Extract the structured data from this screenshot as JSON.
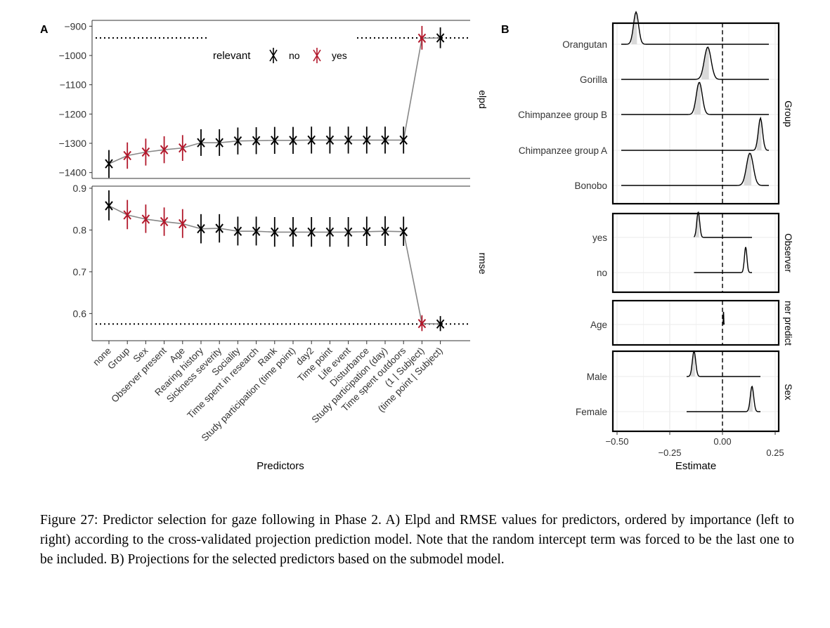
{
  "caption": "Figure 27: Predictor selection for gaze following in Phase 2. A) Elpd and RMSE values for predictors, ordered by importance (left to right) according to the cross-validated projection prediction model. Note that the random intercept term was forced to be the last one to be included. B) Projections for the selected predictors based on the submodel model.",
  "chart_data": [
    {
      "panel": "A",
      "type": "line",
      "xlabel": "Predictors",
      "categories": [
        "none",
        "Group",
        "Sex",
        "Observer present",
        "Age",
        "Rearing history",
        "Sickness severity",
        "Sociality",
        "Time spent in research",
        "Rank",
        "Study participation (time point)",
        "day2",
        "Time point",
        "Life event",
        "Disturbance",
        "Study participation (day)",
        "Time spent outdoors",
        "(1 | Subject)",
        "(time point | Subject)"
      ],
      "relevant": [
        "no",
        "yes",
        "yes",
        "yes",
        "yes",
        "no",
        "no",
        "no",
        "no",
        "no",
        "no",
        "no",
        "no",
        "no",
        "no",
        "no",
        "no",
        "yes",
        "no"
      ],
      "legend": {
        "title": "relevant",
        "entries": [
          "no",
          "yes"
        ],
        "colors": {
          "no": "#000000",
          "yes": "#b2182b"
        },
        "placement": "top"
      },
      "facets": [
        {
          "label": "elpd",
          "ylim": [
            -1420,
            -880
          ],
          "yticks": [
            -900,
            -1000,
            -1100,
            -1200,
            -1300,
            -1400
          ],
          "values": [
            -1370,
            -1342,
            -1330,
            -1322,
            -1316,
            -1298,
            -1298,
            -1292,
            -1291,
            -1290,
            -1290,
            -1289,
            -1289,
            -1289,
            -1289,
            -1289,
            -1289,
            -941,
            -940
          ],
          "lower": [
            -1418,
            -1387,
            -1376,
            -1368,
            -1360,
            -1343,
            -1343,
            -1338,
            -1337,
            -1336,
            -1336,
            -1335,
            -1335,
            -1335,
            -1335,
            -1335,
            -1335,
            -980,
            -975
          ],
          "upper": [
            -1323,
            -1297,
            -1284,
            -1276,
            -1272,
            -1252,
            -1252,
            -1246,
            -1245,
            -1244,
            -1244,
            -1243,
            -1243,
            -1243,
            -1243,
            -1243,
            -1243,
            -899,
            -904
          ],
          "reference": -940
        },
        {
          "label": "rmse",
          "ylim": [
            0.535,
            0.905
          ],
          "yticks": [
            0.9,
            0.8,
            0.7,
            0.6
          ],
          "values": [
            0.858,
            0.836,
            0.826,
            0.82,
            0.815,
            0.803,
            0.804,
            0.797,
            0.797,
            0.795,
            0.795,
            0.795,
            0.795,
            0.795,
            0.796,
            0.797,
            0.796,
            0.576,
            0.575
          ],
          "lower": [
            0.823,
            0.802,
            0.793,
            0.786,
            0.781,
            0.768,
            0.77,
            0.763,
            0.763,
            0.76,
            0.76,
            0.76,
            0.76,
            0.76,
            0.762,
            0.762,
            0.762,
            0.558,
            0.558
          ],
          "upper": [
            0.895,
            0.872,
            0.861,
            0.854,
            0.85,
            0.838,
            0.838,
            0.832,
            0.832,
            0.831,
            0.831,
            0.831,
            0.831,
            0.831,
            0.832,
            0.833,
            0.832,
            0.596,
            0.594
          ],
          "reference": 0.575
        }
      ]
    },
    {
      "panel": "B",
      "type": "area",
      "xlabel": "Estimate",
      "xlim": [
        -0.5,
        0.25
      ],
      "xticks": [
        -0.5,
        -0.25,
        0,
        0.25
      ],
      "xtick_labels": [
        "−0.50",
        "−0.25",
        "0.00",
        "0.25"
      ],
      "reference_x": 0,
      "facets": [
        {
          "label": "Group",
          "rows": [
            {
              "name": "Orangutan",
              "peak": -0.41,
              "sd": 0.012,
              "range": [
                -0.48,
                0.22
              ],
              "fill": true
            },
            {
              "name": "Gorilla",
              "peak": -0.07,
              "sd": 0.016,
              "range": [
                -0.48,
                0.22
              ],
              "fill": true
            },
            {
              "name": "Chimpanzee group B",
              "peak": -0.11,
              "sd": 0.014,
              "range": [
                -0.48,
                0.22
              ],
              "fill": true
            },
            {
              "name": "Chimpanzee group A",
              "peak": 0.18,
              "sd": 0.01,
              "range": [
                -0.48,
                0.22
              ],
              "fill": true
            },
            {
              "name": "Bonobo",
              "peak": 0.13,
              "sd": 0.016,
              "range": [
                -0.48,
                0.22
              ],
              "fill": true
            }
          ]
        },
        {
          "label": "Observer",
          "rows": [
            {
              "name": "yes",
              "peak": -0.115,
              "sd": 0.007,
              "range": [
                -0.135,
                0.14
              ],
              "fill": true
            },
            {
              "name": "no",
              "peak": 0.11,
              "sd": 0.006,
              "range": [
                -0.135,
                0.14
              ],
              "fill": false
            }
          ]
        },
        {
          "label": "Other predictors",
          "label_shown": "ner predict",
          "rows": [
            {
              "name": "Age",
              "peak": 0.005,
              "sd": 0.001,
              "range": [
                0.002,
                0.008
              ],
              "fill": false
            }
          ]
        },
        {
          "label": "Sex",
          "rows": [
            {
              "name": "Male",
              "peak": -0.135,
              "sd": 0.008,
              "range": [
                -0.17,
                0.18
              ],
              "fill": true
            },
            {
              "name": "Female",
              "peak": 0.14,
              "sd": 0.008,
              "range": [
                -0.17,
                0.18
              ],
              "fill": true
            }
          ]
        }
      ]
    }
  ],
  "labels": {
    "panel_a": "A",
    "panel_b": "B",
    "legend_title": "relevant",
    "legend_no": "no",
    "legend_yes": "yes"
  }
}
